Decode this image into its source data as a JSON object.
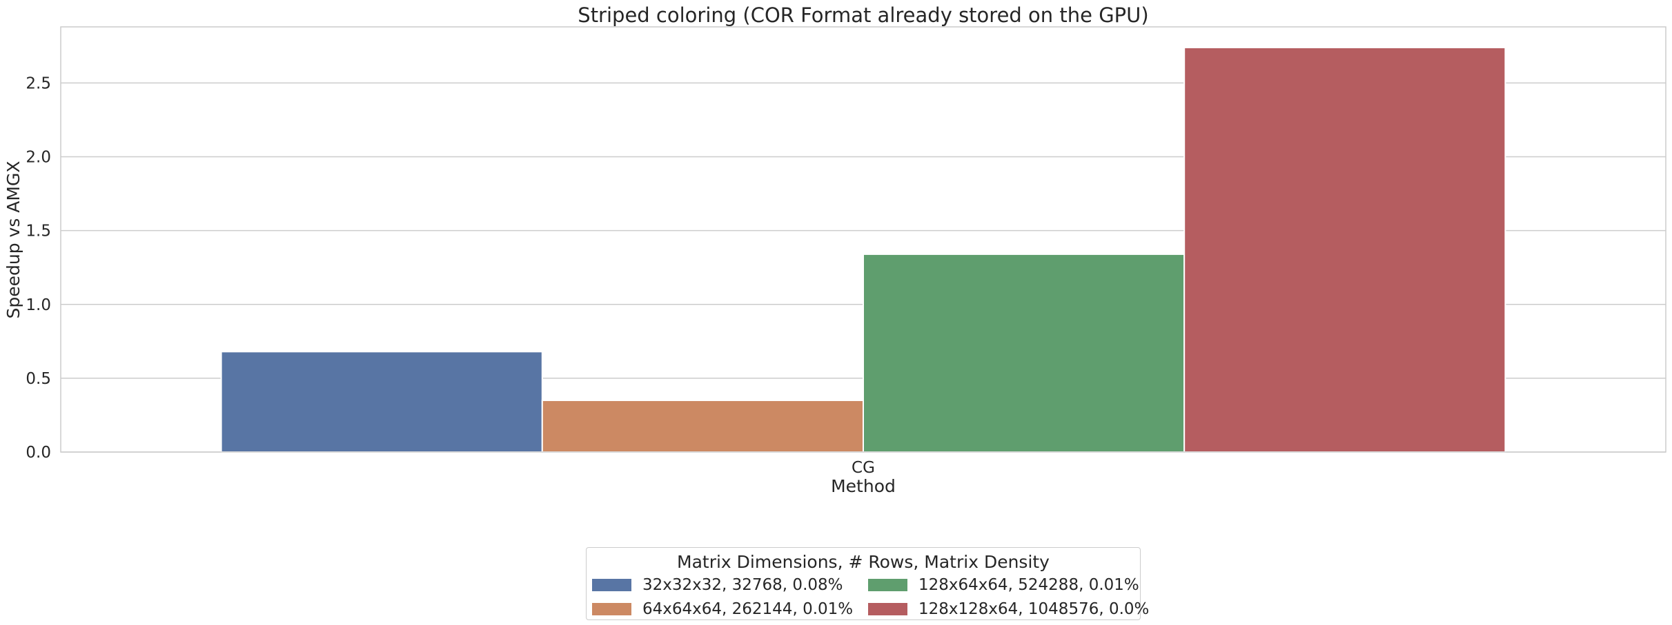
{
  "chart_data": {
    "type": "bar",
    "title": "Striped coloring (COR Format already stored on the GPU)",
    "xlabel": "Method",
    "ylabel": "Speedup vs AMGX",
    "categories": [
      "CG"
    ],
    "ylim": [
      0,
      2.88
    ],
    "yticks": [
      "0.0",
      "0.5",
      "1.0",
      "1.5",
      "2.0",
      "2.5"
    ],
    "grid": true,
    "legend": {
      "title": "Matrix Dimensions, # Rows, Matrix Density",
      "placement": "bottom-center"
    },
    "series": [
      {
        "name": "32x32x32, 32768, 0.08%",
        "values": [
          0.68
        ],
        "color": "#5875a4"
      },
      {
        "name": "64x64x64, 262144, 0.01%",
        "values": [
          0.35
        ],
        "color": "#cc8963"
      },
      {
        "name": "128x64x64, 524288, 0.01%",
        "values": [
          1.34
        ],
        "color": "#5f9e6e"
      },
      {
        "name": "128x128x64, 1048576, 0.0%",
        "values": [
          2.74
        ],
        "color": "#b55d60"
      }
    ]
  }
}
